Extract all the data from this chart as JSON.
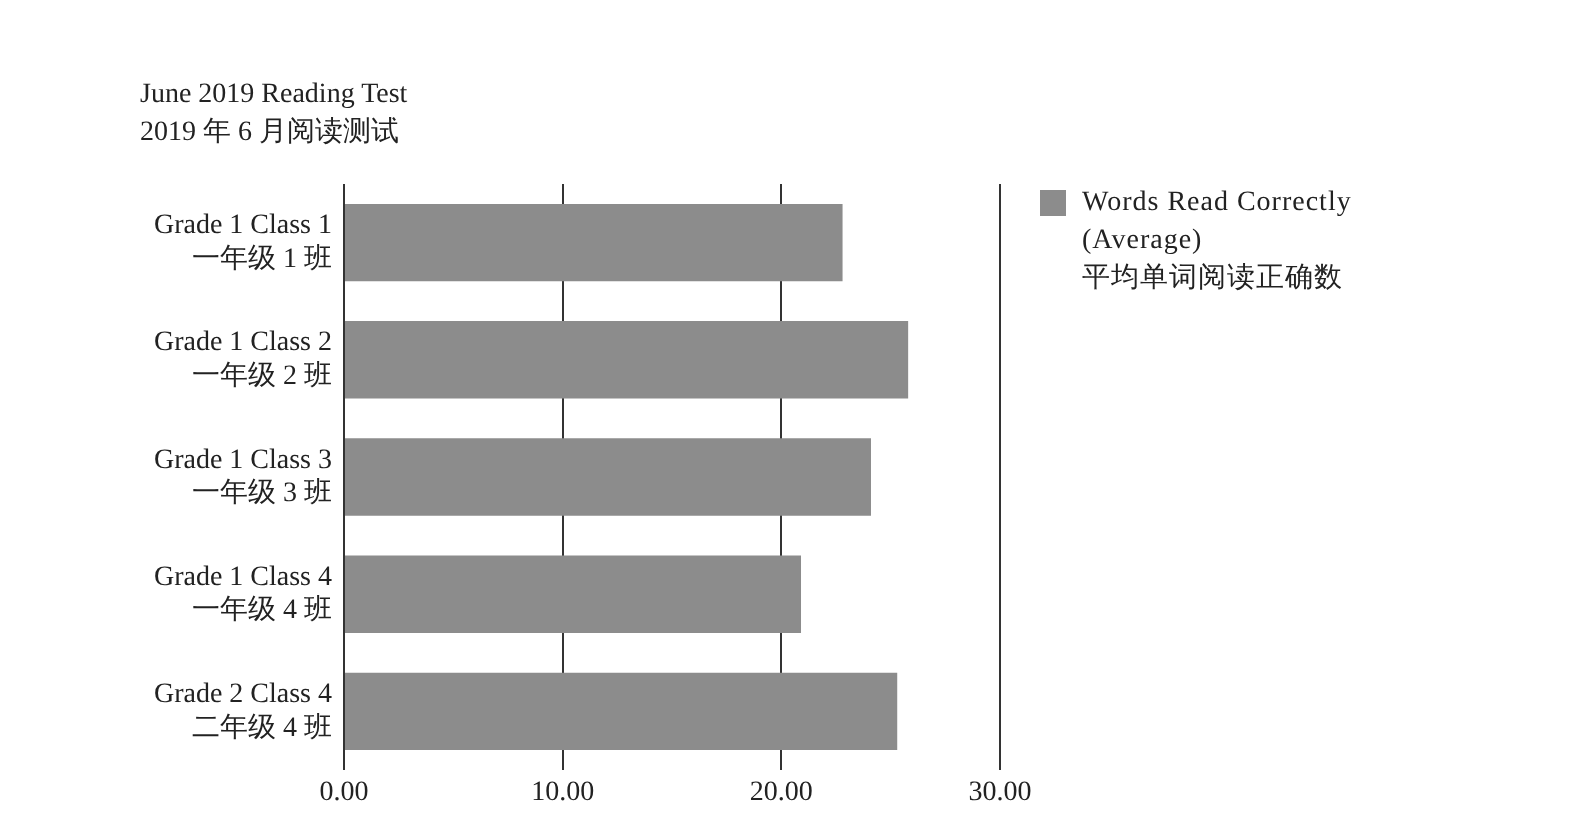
{
  "chart_data": {
    "type": "bar",
    "orientation": "horizontal",
    "title": "June 2019 Reading Test",
    "subtitle": "2019 年 6 月阅读测试",
    "categories": [
      "Grade 1 Class 1\n一年级 1 班",
      "Grade 1 Class 2\n一年级 2 班",
      "Grade 1 Class 3\n一年级 3 班",
      "Grade 1 Class 4\n一年级 4 班",
      "Grade 2 Class 4\n二年级 4 班"
    ],
    "series": [
      {
        "name": "Words Read Correctly\n(Average)\n平均单词阅读正确数",
        "color": "#8c8c8c",
        "values": [
          22.8,
          25.8,
          24.1,
          20.9,
          25.3
        ]
      }
    ],
    "xlim": [
      0,
      30
    ],
    "xticks": [
      {
        "value": 0,
        "label": "0.00"
      },
      {
        "value": 10,
        "label": "10.00"
      },
      {
        "value": 20,
        "label": "20.00"
      },
      {
        "value": 30,
        "label": "30.00"
      }
    ],
    "grid": "x",
    "legend": "right"
  }
}
